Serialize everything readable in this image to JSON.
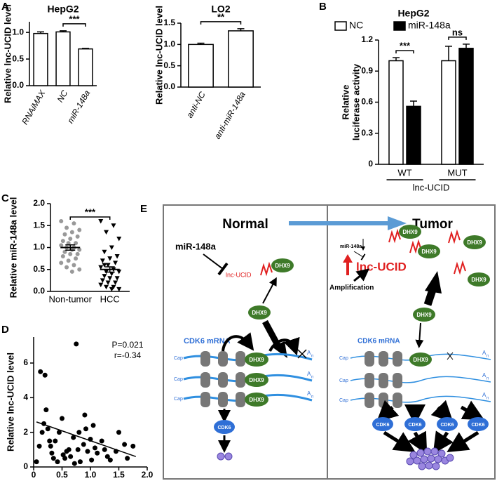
{
  "chart_data": [
    {
      "type": "bar",
      "panel_label": "A",
      "title": "HepG2",
      "ylabel": "Relative lnc-UCID level",
      "categories": [
        "RNAiMAX",
        "NC",
        "miR-148a"
      ],
      "values": [
        0.98,
        1.01,
        0.69
      ],
      "errors": [
        0.03,
        0.02,
        0.01
      ],
      "color": "#ffffff",
      "ylim": [
        0,
        1.2
      ],
      "yticks": [
        {
          "value": 0,
          "label": "0.0"
        },
        0.5,
        {
          "value": 1,
          "label": "1.0"
        }
      ],
      "annotations": [
        "***"
      ]
    },
    {
      "type": "bar",
      "title": "LO2",
      "ylabel": "Relative lnc-UCID level",
      "categories": [
        "anti-NC",
        "anti-miR-148a"
      ],
      "values": [
        1.0,
        1.32
      ],
      "errors": [
        0.03,
        0.05
      ],
      "color": "#ffffff",
      "ylim": [
        0,
        1.5
      ],
      "yticks": [
        {
          "value": 0,
          "label": "0.0"
        },
        0.5,
        {
          "value": 1,
          "label": "1.0"
        },
        1.5
      ],
      "annotations": [
        "**"
      ]
    },
    {
      "type": "bar",
      "panel_label": "B",
      "title": "HepG2",
      "ylabel": [
        "Relative",
        "luciferase activity"
      ],
      "categories": [
        "WT",
        "MUT"
      ],
      "group_label": "lnc-UCID",
      "series": [
        {
          "name": "NC",
          "color": "#ffffff",
          "values": [
            1.0,
            1.0
          ],
          "errors": [
            0.03,
            0.14
          ]
        },
        {
          "name": "miR-148a",
          "color": "#000000",
          "values": [
            0.56,
            1.12
          ],
          "errors": [
            0.05,
            0.04
          ]
        }
      ],
      "ylim": [
        0,
        1.2
      ],
      "yticks": [
        0,
        0.3,
        0.6,
        0.9,
        1.2
      ],
      "annotations": [
        "***",
        "ns"
      ]
    },
    {
      "type": "strip",
      "panel_label": "C",
      "ylabel": "Relative miR-148a level",
      "categories": [
        "Non-tumor",
        "HCC"
      ],
      "series": [
        {
          "marker": "circle",
          "values": [
            1.6,
            1.55,
            1.45,
            1.4,
            1.35,
            1.3,
            1.25,
            1.2,
            1.15,
            1.1,
            1.1,
            1.05,
            1.0,
            1.0,
            0.95,
            0.95,
            0.9,
            0.85,
            0.85,
            0.8,
            0.75,
            0.7,
            0.65,
            0.6,
            0.55,
            0.5,
            0.45
          ],
          "mean": 1.0,
          "sem": 0.06
        },
        {
          "marker": "triangle",
          "values": [
            1.6,
            1.5,
            1.35,
            1.2,
            1.0,
            0.9,
            0.8,
            0.75,
            0.7,
            0.65,
            0.6,
            0.55,
            0.5,
            0.45,
            0.45,
            0.4,
            0.35,
            0.3,
            0.3,
            0.25,
            0.2,
            0.2,
            0.15,
            0.1,
            0.1,
            0.05,
            0.05,
            0.6
          ],
          "mean": 0.5,
          "sem": 0.06
        }
      ],
      "ylim": [
        0,
        2
      ],
      "yticks": [
        {
          "value": 0,
          "label": "0.0"
        },
        0.5,
        {
          "value": 1,
          "label": "1.0"
        },
        1.5,
        {
          "value": 2,
          "label": "2.0"
        }
      ],
      "annotations": [
        "***"
      ]
    },
    {
      "type": "scatter",
      "panel_label": "D",
      "xlabel": "Relative miR-148a level",
      "ylabel": "Relative lnc-UCID level",
      "x": [
        0.05,
        0.1,
        0.12,
        0.15,
        0.18,
        0.2,
        0.22,
        0.25,
        0.28,
        0.3,
        0.32,
        0.35,
        0.38,
        0.42,
        0.45,
        0.5,
        0.52,
        0.55,
        0.58,
        0.62,
        0.65,
        0.7,
        0.72,
        0.75,
        0.78,
        0.8,
        0.82,
        0.88,
        0.9,
        0.92,
        0.95,
        1.0,
        1.02,
        1.05,
        1.08,
        1.12,
        1.2,
        1.25,
        1.3,
        1.35,
        1.45,
        1.5,
        1.6,
        1.65,
        1.75
      ],
      "y": [
        0.3,
        1.2,
        5.5,
        2.0,
        2.5,
        5.3,
        3.3,
        2.2,
        1.5,
        1.2,
        0.8,
        0.5,
        1.5,
        0.3,
        2.0,
        2.8,
        0.7,
        0.5,
        0.9,
        1.0,
        0.6,
        1.7,
        0.2,
        7.1,
        1.0,
        2.0,
        0.3,
        1.3,
        3.0,
        2.2,
        0.9,
        1.6,
        0.4,
        2.4,
        1.1,
        0.8,
        1.5,
        1.0,
        0.6,
        0.4,
        0.9,
        2.0,
        1.3,
        0.5,
        1.2
      ],
      "fit": {
        "x": [
          0.05,
          1.8
        ],
        "y": [
          2.6,
          0.6
        ]
      },
      "annotations": [
        "P=0.021",
        "r=-0.34"
      ],
      "xlim": [
        0,
        2
      ],
      "xticks": [
        0,
        0.5,
        {
          "value": 1,
          "label": "1.0"
        },
        1.5,
        {
          "value": 2,
          "label": "2.0"
        }
      ],
      "ylim": [
        0,
        7.5
      ],
      "yticks": [
        0,
        2,
        4,
        6
      ]
    }
  ],
  "diagram": {
    "panel_label": "E",
    "normal": {
      "title": "Normal",
      "mirna": "miR-148a",
      "lncrna": "lnc-UCID",
      "protein": "DHX9",
      "mrna": "CDK6 mRNA",
      "cap": "Cap",
      "tail": "A",
      "tail_sub": "n",
      "product": "CDK6"
    },
    "tumor": {
      "title": "Tumor",
      "mirna": "miR-148a",
      "lncrna": "lnc-UCID",
      "protein": "DHX9",
      "mrna": "CDK6 mRNA",
      "cap": "Cap",
      "tail": "A",
      "tail_sub": "n",
      "product": "CDK6",
      "driver": "Amplification"
    }
  }
}
